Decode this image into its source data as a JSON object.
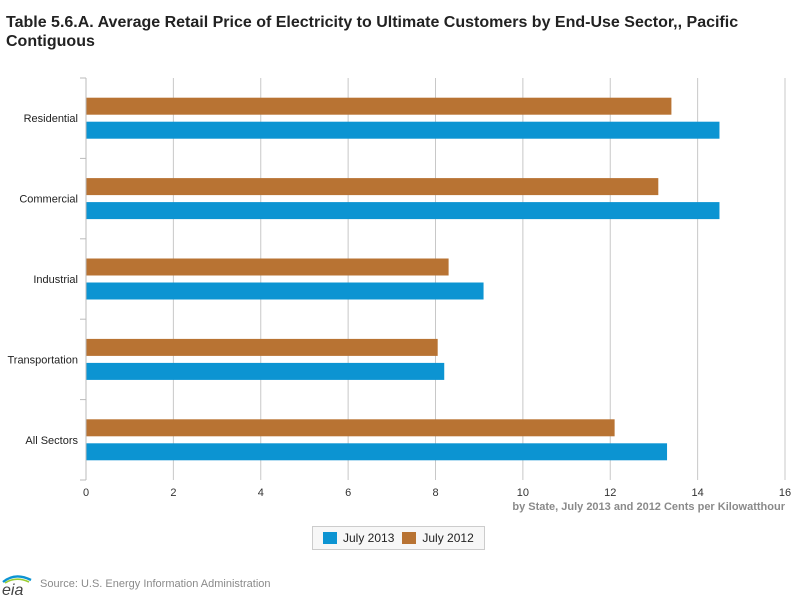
{
  "chart_data": {
    "type": "bar",
    "orientation": "horizontal",
    "title": "Table 5.6.A. Average Retail Price of Electricity to Ultimate Customers by End-Use Sector,, Pacific Contiguous",
    "categories": [
      "Residential",
      "Commercial",
      "Industrial",
      "Transportation",
      "All Sectors"
    ],
    "series": [
      {
        "name": "July 2012",
        "color": "#b87333",
        "values": [
          13.4,
          13.1,
          8.3,
          8.05,
          12.1
        ]
      },
      {
        "name": "July 2013",
        "color": "#0c94d2",
        "values": [
          14.5,
          14.5,
          9.1,
          8.2,
          13.3
        ]
      }
    ],
    "xlim": [
      0,
      16
    ],
    "xticks": [
      0,
      2,
      4,
      6,
      8,
      10,
      12,
      14,
      16
    ],
    "xlabel": "by State, July 2013 and 2012 Cents per Kilowatthour",
    "grid": true,
    "legend_position": "bottom-center"
  },
  "legend": [
    {
      "label": "July 2013",
      "color": "#0c94d2"
    },
    {
      "label": "July 2012",
      "color": "#b87333"
    }
  ],
  "footer": {
    "logo_text": "eia",
    "source": "Source: U.S. Energy Information Administration"
  }
}
